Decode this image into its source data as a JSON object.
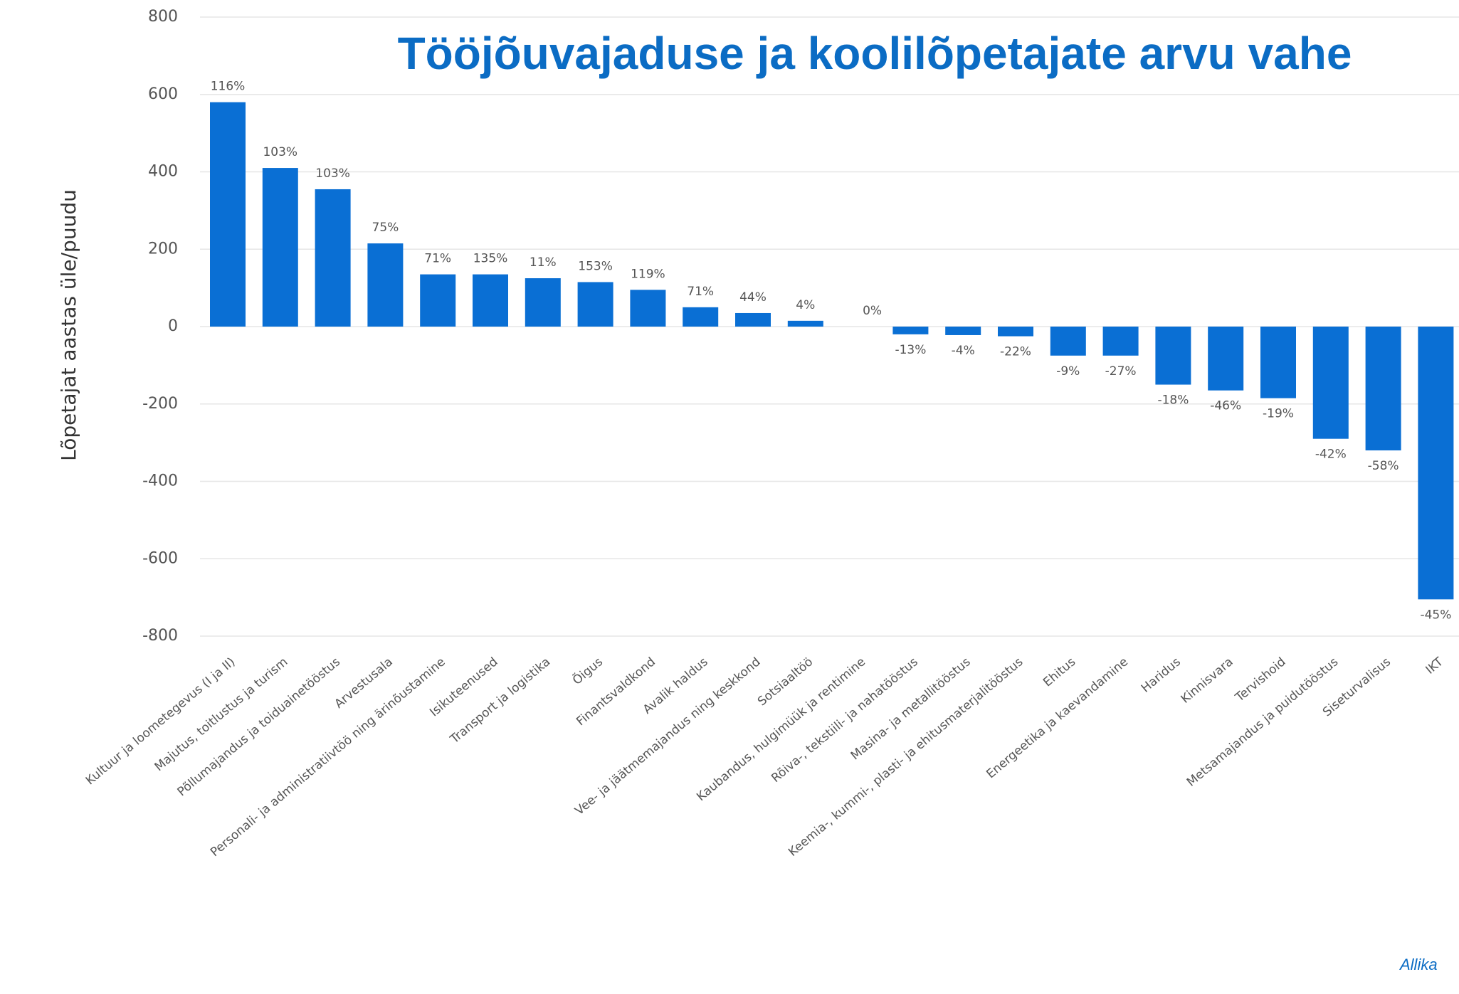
{
  "chart_data": {
    "type": "bar",
    "title": "Tööjõuvajaduse ja koolilõpetajate arvu vahe",
    "y_label": "Lõpetajat aastas üle/puudu",
    "source": "Allika",
    "categories": [
      "Kultuur ja loometegevus (I ja II)",
      "Majutus, toitlustus ja turism",
      "Põllumajandus ja toiduainetööstus",
      "Arvestusala",
      "Personali- ja administratiivtöö ning ärinõustamine",
      "Isikuteenused",
      "Transport ja logistika",
      "Õigus",
      "Finantsvaldkond",
      "Avalik haldus",
      "Vee- ja jäätmemajandus ning keskkond",
      "Sotsiaaltöö",
      "Kaubandus, hulgimüük ja rentimine",
      "Rõiva-, tekstiili- ja nahatööstus",
      "Masina- ja metallitööstus",
      "Keemia-, kummi-, plasti- ja ehitusmaterjalitööstus",
      "Ehitus",
      "Energeetika ja kaevandamine",
      "Haridus",
      "Kinnisvara",
      "Tervishoid",
      "Metsamajandus ja puidutööstus",
      "Siseturvalisus",
      "IKT"
    ],
    "values": [
      580,
      410,
      355,
      215,
      135,
      135,
      125,
      115,
      95,
      50,
      35,
      15,
      0,
      -20,
      -22,
      -25,
      -75,
      -75,
      -150,
      -165,
      -185,
      -290,
      -320,
      -705
    ],
    "percent_labels": [
      "116%",
      "103%",
      "103%",
      "75%",
      "71%",
      "135%",
      "11%",
      "153%",
      "119%",
      "71%",
      "44%",
      "4%",
      "0%",
      "-13%",
      "-4%",
      "-22%",
      "-9%",
      "-27%",
      "-18%",
      "-46%",
      "-19%",
      "-42%",
      "-58%",
      "-45%"
    ],
    "color": "#0a6fd4",
    "ylim": [
      -800,
      800
    ],
    "yticks": [
      -800,
      -600,
      -400,
      -200,
      0,
      200,
      400,
      600,
      800
    ],
    "grid": true
  }
}
